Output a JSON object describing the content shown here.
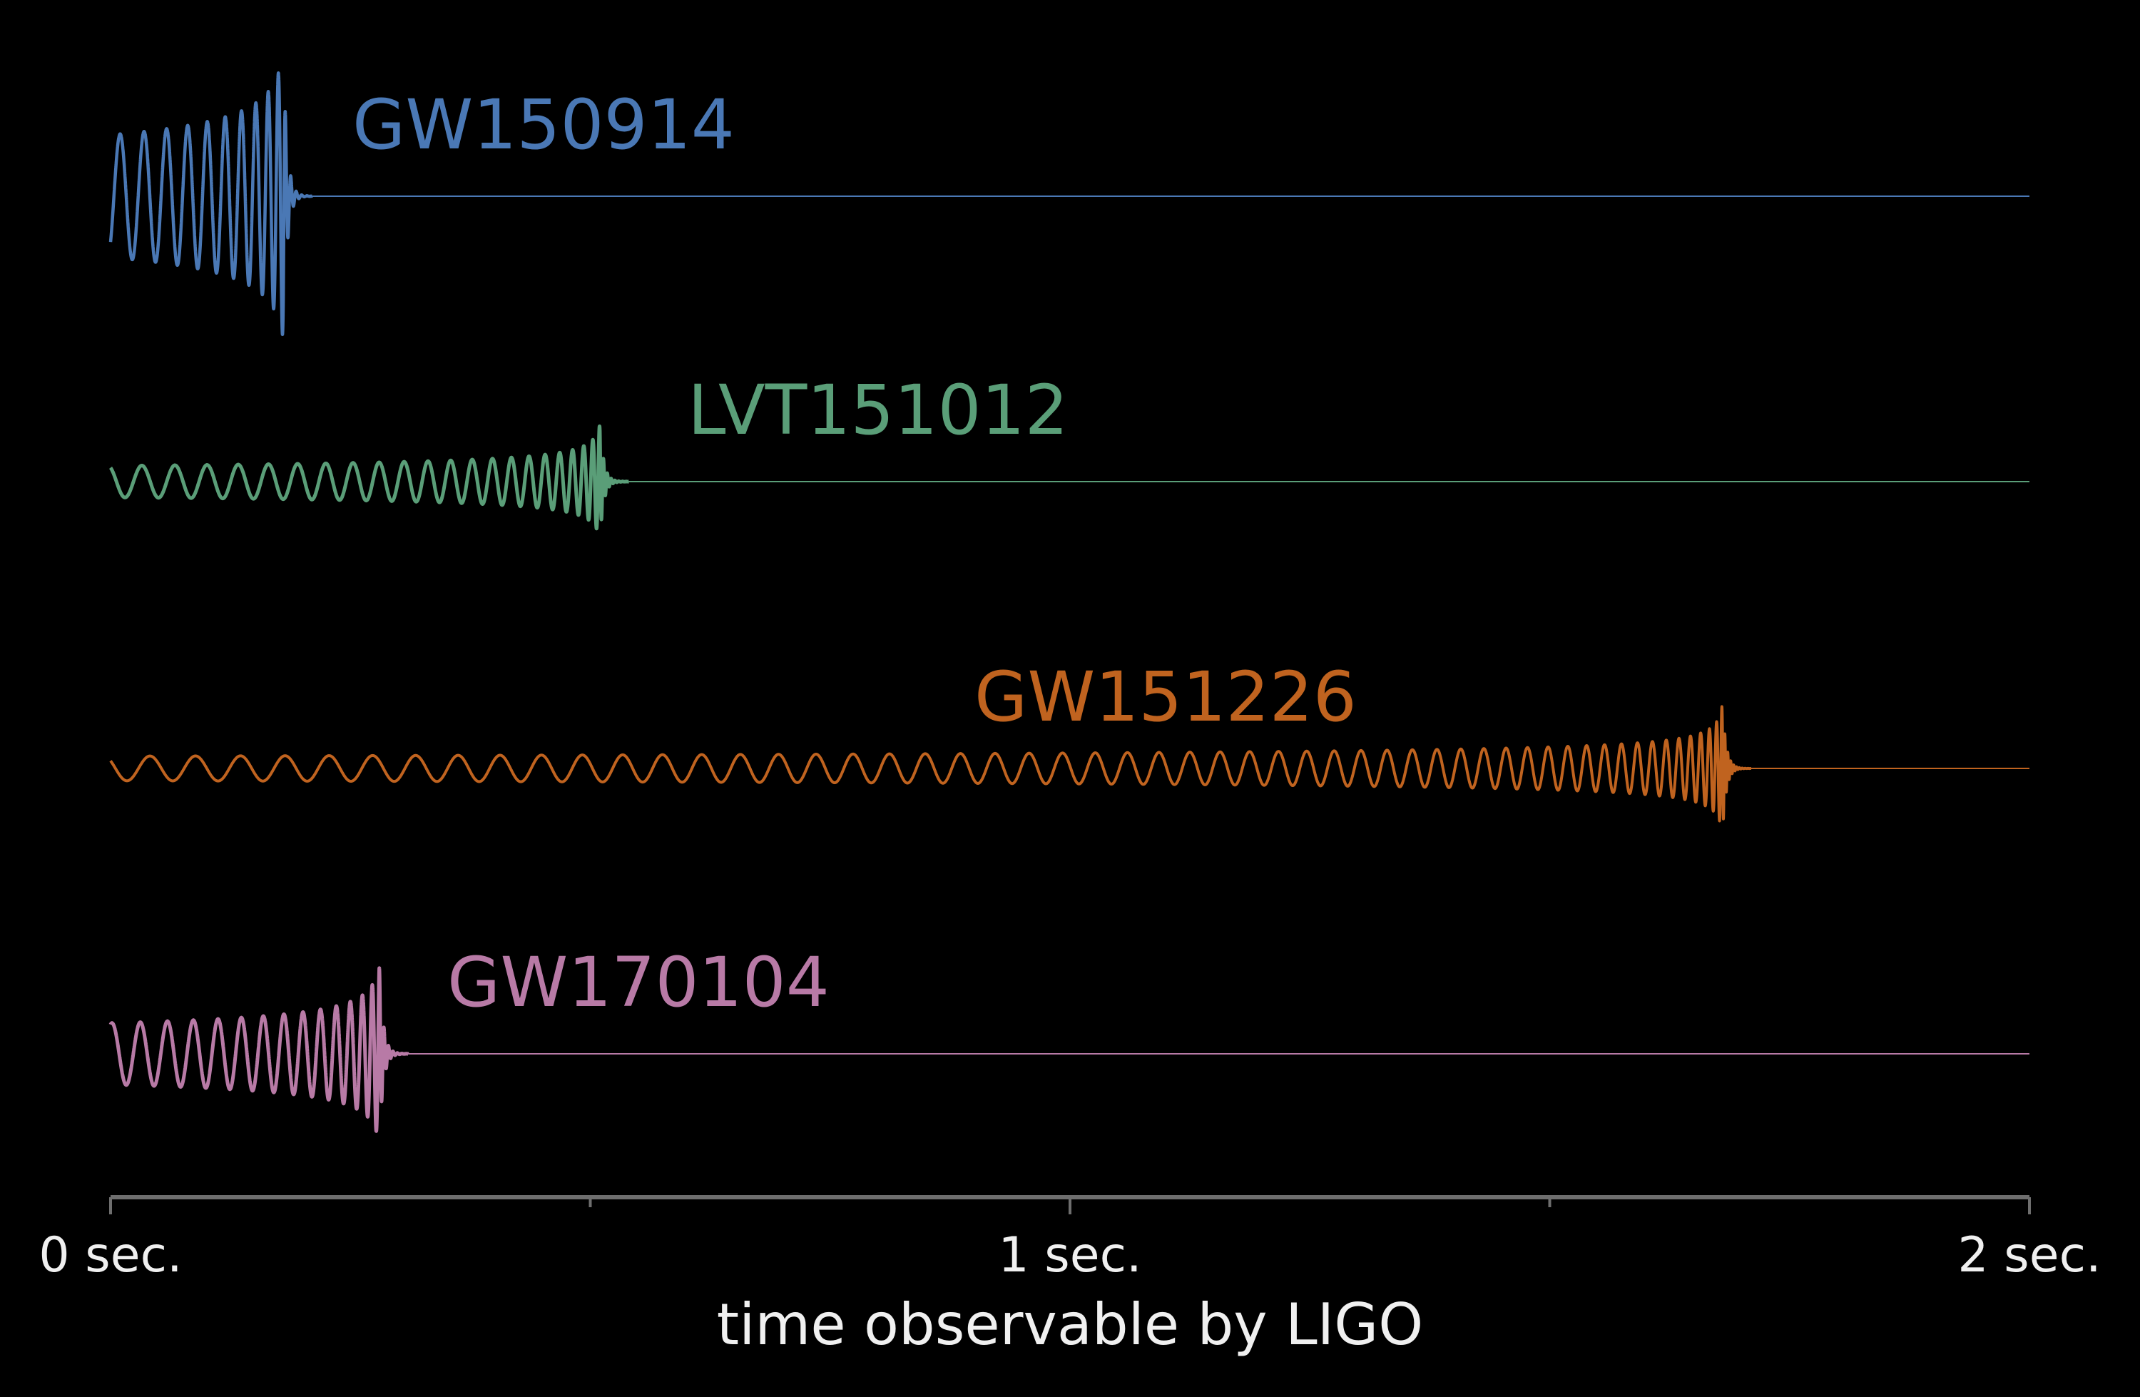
{
  "chart_data": {
    "type": "line",
    "title": "",
    "xlabel": "time observable by LIGO",
    "ylabel": "",
    "xlim": [
      0,
      2
    ],
    "x_unit": "sec.",
    "grid": false,
    "legend": "none",
    "background": "#000000",
    "axis_color": "#6e6e6e",
    "text_color": "#f0f0f0",
    "xticks": [
      {
        "value": 0,
        "label": "0 sec."
      },
      {
        "value": 0.5,
        "label": ""
      },
      {
        "value": 1,
        "label": "1 sec."
      },
      {
        "value": 1.5,
        "label": ""
      },
      {
        "value": 2,
        "label": "2 sec."
      }
    ],
    "series": [
      {
        "name": "GW150914",
        "color": "#4a78b5",
        "merger_time": 0.18,
        "cycles_shown": 10
      },
      {
        "name": "LVT151012",
        "color": "#5a9e78",
        "merger_time": 0.51,
        "cycles_shown": 22
      },
      {
        "name": "GW151226",
        "color": "#c0631f",
        "merger_time": 1.68,
        "cycles_shown": 55
      },
      {
        "name": "GW170104",
        "color": "#b87aa6",
        "merger_time": 0.28,
        "cycles_shown": 14
      }
    ]
  }
}
